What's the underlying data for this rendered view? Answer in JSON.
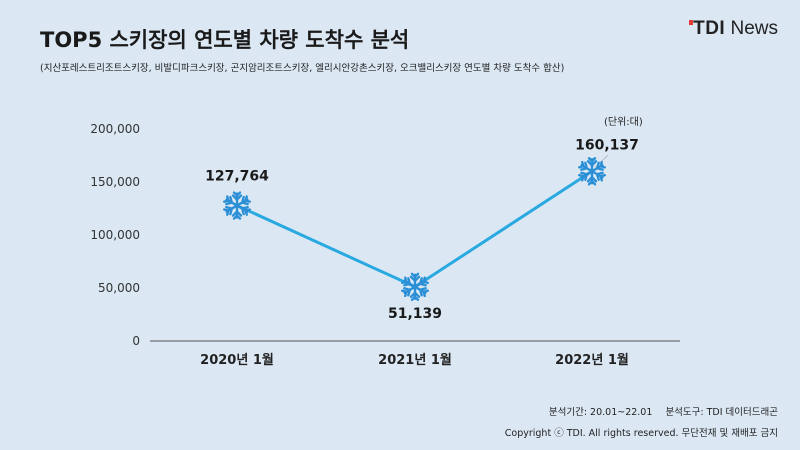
{
  "header": {
    "title": "TOP5 스키장의 연도별 차량 도착수 분석",
    "subtitle": "(지산포레스트리조트스키장, 비발디파크스키장, 곤지암리조트스키장, 엘리시안강촌스키장, 오크밸리스키장 연도별 차량 도착수 합산)",
    "logo_bold": "TDI",
    "logo_light": "News"
  },
  "chart_data": {
    "type": "line",
    "categories": [
      "2020년 1월",
      "2021년 1월",
      "2022년 1월"
    ],
    "values": [
      127764,
      51139,
      160137
    ],
    "value_labels": [
      "127,764",
      "51,139",
      "160,137"
    ],
    "ylim": [
      0,
      200000
    ],
    "yticks": [
      0,
      50000,
      100000,
      150000,
      200000
    ],
    "ytick_labels": [
      "0",
      "50,000",
      "100,000",
      "150,000",
      "200,000"
    ],
    "unit_label": "(단위:대)",
    "grid": false,
    "line_color": "#29a9e0",
    "marker_icon": "snowflake-icon"
  },
  "footer": {
    "period": "분석기간: 20.01~22.01",
    "tool": "분석도구: TDI 데이터드래곤",
    "copyright": "Copyright ⓒ TDI. All rights reserved. 무단전재 및 재배포 금지"
  }
}
